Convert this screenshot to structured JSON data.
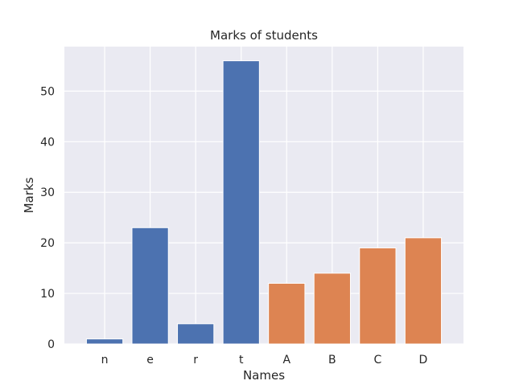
{
  "chart_data": {
    "type": "bar",
    "title": "Marks of students",
    "xlabel": "Names",
    "ylabel": "Marks",
    "ylim": [
      0,
      58.8
    ],
    "yticks": [
      0,
      10,
      20,
      30,
      40,
      50
    ],
    "grid": true,
    "series": [
      {
        "categories": [
          "n",
          "e",
          "r",
          "t"
        ],
        "values": [
          1,
          23,
          4,
          56
        ],
        "color": "#4c72b0"
      },
      {
        "categories": [
          "A",
          "B",
          "C",
          "D"
        ],
        "values": [
          12,
          14,
          19,
          21
        ],
        "color": "#dd8452"
      }
    ]
  },
  "colors": {
    "plot_background": "#eaeaf2",
    "grid": "#ffffff",
    "text": "#262626"
  }
}
